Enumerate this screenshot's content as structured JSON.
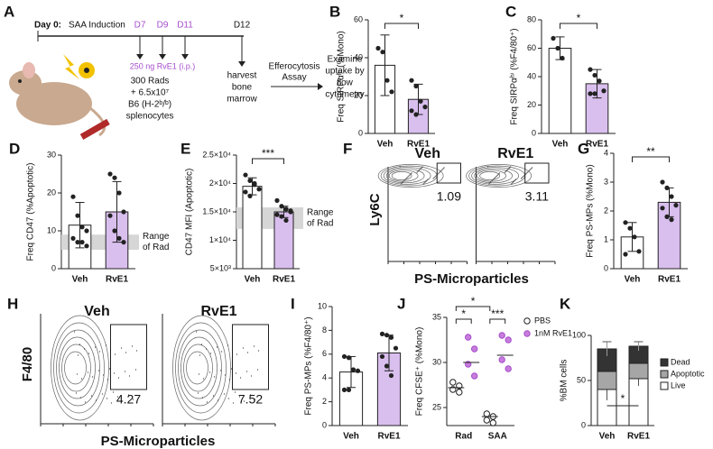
{
  "diagram": {
    "label": "A",
    "day0": "Day 0:",
    "induction": "SAA Induction",
    "days": [
      "D7",
      "D9",
      "D11",
      "D12"
    ],
    "treatment": "250 ng RvE1 (i.p.)",
    "donor": [
      "300 Rads",
      "+ 6.5x10⁷",
      "B6 (H-2ᵇ/ᵇ)",
      "splenocytes"
    ],
    "harvest": [
      "harvest",
      "bone",
      "marrow"
    ],
    "assay": [
      "Efferocytosis",
      "Assay"
    ],
    "examine": [
      "Examine",
      "uptake by",
      "flow",
      "cytometry"
    ]
  },
  "chart_data": [
    {
      "type": "bar",
      "label": "B",
      "ylabel": "Freq SIRPαʰⁱ (%Mono)",
      "categories": [
        "Veh",
        "RvE1"
      ],
      "values": [
        36,
        18
      ],
      "errors": [
        16,
        8
      ],
      "points": [
        [
          45,
          43,
          28,
          22
        ],
        [
          28,
          25,
          17,
          14,
          12,
          10
        ]
      ],
      "colors": [
        "#ffffff",
        "#d9bfee"
      ],
      "ylim": [
        0,
        60
      ],
      "yticks": [
        0,
        20,
        40,
        60
      ],
      "significance": "*"
    },
    {
      "type": "bar",
      "label": "C",
      "ylabel": "Freq SIRPαʰⁱ (%F4/80⁺)",
      "categories": [
        "Veh",
        "RvE1"
      ],
      "values": [
        60,
        35
      ],
      "errors": [
        8,
        10
      ],
      "points": [
        [
          67,
          60,
          53
        ],
        [
          45,
          41,
          37,
          30,
          28,
          28
        ]
      ],
      "colors": [
        "#ffffff",
        "#d9bfee"
      ],
      "ylim": [
        0,
        80
      ],
      "yticks": [
        0,
        20,
        40,
        60,
        80
      ],
      "significance": "*"
    },
    {
      "type": "bar",
      "label": "D",
      "ylabel": "Freq CD47 (%Apoptotic)",
      "categories": [
        "Veh",
        "RvE1"
      ],
      "values": [
        11.5,
        15
      ],
      "errors": [
        6,
        8
      ],
      "points": [
        [
          19,
          14,
          11,
          10,
          8,
          7,
          7,
          6
        ],
        [
          25,
          24,
          20,
          15,
          14,
          10,
          8,
          7
        ]
      ],
      "colors": [
        "#ffffff",
        "#d9bfee"
      ],
      "ylim": [
        0,
        30
      ],
      "yticks": [
        0,
        10,
        20,
        30
      ],
      "band": [
        5,
        9
      ],
      "band_label": [
        "Range",
        "of Rad"
      ]
    },
    {
      "type": "bar",
      "label": "E",
      "ylabel": "CD47 MFI (Apoptotic)",
      "categories": [
        "Veh",
        "RvE1"
      ],
      "values": [
        19500,
        15000
      ],
      "errors": [
        1500,
        1000
      ],
      "points": [
        [
          21500,
          20500,
          19800,
          19000,
          18500,
          17800,
          20000
        ],
        [
          17000,
          16000,
          15500,
          15000,
          14500,
          14200,
          13500,
          15200
        ]
      ],
      "colors": [
        "#ffffff",
        "#d9bfee"
      ],
      "ylim": [
        5000,
        25000
      ],
      "yticks": [
        {
          "value": 5000,
          "label": "5×10³"
        },
        {
          "value": 10000,
          "label": "1×10⁴"
        },
        {
          "value": 15000,
          "label": "1.5×10⁴"
        },
        {
          "value": 20000,
          "label": "2×10⁴"
        },
        {
          "value": 25000,
          "label": "2.5×10⁴"
        }
      ],
      "band": [
        12000,
        15800
      ],
      "band_label": [
        "Range",
        "of Rad"
      ],
      "significance": "***"
    },
    {
      "type": "flow",
      "label": "F",
      "titles": [
        "Veh",
        "RvE1"
      ],
      "values": [
        1.09,
        3.11
      ],
      "ylabel": "Ly6C",
      "xlabel": "PS-Microparticles"
    },
    {
      "type": "bar",
      "label": "G",
      "ylabel": "Freq PS-MPs (%Mono)",
      "categories": [
        "Veh",
        "RvE1"
      ],
      "values": [
        1.1,
        2.3
      ],
      "errors": [
        0.5,
        0.5
      ],
      "points": [
        [
          1.6,
          1.4,
          1.1,
          0.6,
          0.5
        ],
        [
          3.0,
          2.8,
          2.5,
          2.2,
          2.1,
          1.8,
          1.7
        ]
      ],
      "colors": [
        "#ffffff",
        "#d9bfee"
      ],
      "ylim": [
        0,
        4
      ],
      "yticks": [
        0,
        1,
        2,
        3,
        4
      ],
      "significance": "**"
    },
    {
      "type": "flow",
      "label": "H",
      "titles": [
        "Veh",
        "RvE1"
      ],
      "values": [
        4.27,
        7.52
      ],
      "ylabel": "F4/80",
      "xlabel": "PS-Microparticles"
    },
    {
      "type": "bar",
      "label": "I",
      "ylabel": "Freq PS-MPs (%F4/80⁺)",
      "categories": [
        "Veh",
        "RvE1"
      ],
      "values": [
        4.5,
        6.1
      ],
      "errors": [
        1.3,
        1.5
      ],
      "points": [
        [
          5.8,
          5.7,
          4.7,
          4.6,
          3.0,
          3.0
        ],
        [
          7.7,
          7.6,
          7.4,
          6.5,
          5.8,
          5.0,
          4.2
        ]
      ],
      "colors": [
        "#ffffff",
        "#d9bfee"
      ],
      "ylim": [
        0,
        10
      ],
      "yticks": [
        0,
        2,
        4,
        6,
        8,
        10
      ]
    },
    {
      "type": "dots",
      "label": "J",
      "ylabel": "Freq CFSE⁺ (%Mono)",
      "categories": [
        "Rad",
        "SAA"
      ],
      "series": [
        {
          "name": "PBS",
          "color": "#ffffff",
          "values": [
            [
              27.8,
              27.4,
              27,
              26.7
            ],
            [
              24.3,
              24,
              23.6,
              23.3
            ]
          ],
          "means": [
            27.2,
            24
          ]
        },
        {
          "name": "1nM RvE1",
          "color": "#c77ddc",
          "values": [
            [
              32.8,
              31.5,
              29.8,
              28.5
            ],
            [
              33,
              32.5,
              30.3,
              29.3
            ]
          ],
          "means": [
            30,
            30.8
          ]
        }
      ],
      "ylim": [
        23,
        35
      ],
      "yticks": [
        25,
        30,
        35
      ],
      "significance": [
        "*",
        "***",
        "*"
      ]
    },
    {
      "type": "stacked",
      "label": "K",
      "ylabel": "%BM cells",
      "categories": [
        "Veh",
        "RvE1"
      ],
      "series": [
        {
          "name": "Live",
          "color": "#ffffff",
          "values": [
            40,
            52
          ],
          "errors": [
            12,
            8
          ]
        },
        {
          "name": "Apoptotic",
          "color": "#a6a6a6",
          "values": [
            20,
            17
          ],
          "errors": [
            0,
            0
          ]
        },
        {
          "name": "Dead",
          "color": "#333333",
          "values": [
            25,
            19
          ],
          "errors": [
            8,
            5
          ]
        }
      ],
      "ylim": [
        0,
        100
      ],
      "yticks": [
        0,
        50,
        100
      ],
      "significance": "*"
    }
  ]
}
